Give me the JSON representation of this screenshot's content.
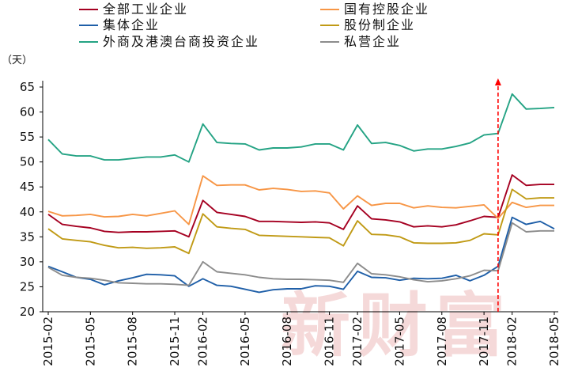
{
  "chart_data": {
    "type": "line",
    "title": "",
    "xlabel": "",
    "ylabel": "",
    "y_unit": "（天）",
    "ylim": [
      20,
      65
    ],
    "yticks": [
      20,
      25,
      30,
      35,
      40,
      45,
      50,
      55,
      60,
      65
    ],
    "xtick_labels": [
      "2015-02",
      "2015-05",
      "2015-08",
      "2015-11",
      "2016-02",
      "2016-05",
      "2016-08",
      "2016-11",
      "2017-02",
      "2017-05",
      "2017-08",
      "2017-11",
      "2018-02",
      "2018-05"
    ],
    "x": [
      "2015-02",
      "2015-03",
      "2015-04",
      "2015-05",
      "2015-06",
      "2015-07",
      "2015-08",
      "2015-09",
      "2015-10",
      "2015-11",
      "2015-12",
      "2016-02",
      "2016-03",
      "2016-04",
      "2016-05",
      "2016-06",
      "2016-07",
      "2016-08",
      "2016-09",
      "2016-10",
      "2016-11",
      "2016-12",
      "2017-02",
      "2017-03",
      "2017-04",
      "2017-05",
      "2017-06",
      "2017-07",
      "2017-08",
      "2017-09",
      "2017-10",
      "2017-11",
      "2017-12",
      "2018-02",
      "2018-03",
      "2018-04",
      "2018-05"
    ],
    "grid": false,
    "legend_position": "top",
    "watermark": "新财富",
    "reference_line": {
      "x": "2017-12",
      "style": "dashed-arrow",
      "color": "#ff0000"
    },
    "series": [
      {
        "name": "全部工业企业",
        "color": "#a50021",
        "values": [
          39.5,
          37.5,
          37.1,
          36.8,
          36.1,
          35.9,
          36.0,
          36.0,
          36.1,
          36.2,
          35.0,
          42.3,
          39.9,
          39.5,
          39.1,
          38.1,
          38.1,
          38.0,
          37.9,
          38.0,
          37.8,
          36.5,
          41.2,
          38.6,
          38.4,
          38.0,
          37.0,
          37.2,
          37.0,
          37.4,
          38.2,
          39.1,
          38.9,
          47.4,
          45.3,
          45.5,
          45.5
        ]
      },
      {
        "name": "国有控股企业",
        "color": "#f79646",
        "values": [
          40.1,
          39.2,
          39.3,
          39.5,
          39.0,
          39.1,
          39.5,
          39.2,
          39.7,
          40.2,
          37.5,
          47.2,
          45.3,
          45.4,
          45.4,
          44.4,
          44.7,
          44.5,
          44.1,
          44.2,
          43.8,
          40.6,
          43.2,
          41.3,
          41.7,
          41.7,
          40.8,
          41.2,
          40.9,
          40.8,
          41.1,
          41.4,
          38.7,
          41.9,
          40.9,
          41.3,
          41.3
        ]
      },
      {
        "name": "集体企业",
        "color": "#1f5fa8",
        "values": [
          29.1,
          28.0,
          26.9,
          26.5,
          25.4,
          26.2,
          26.8,
          27.5,
          27.4,
          27.2,
          25.1,
          26.6,
          25.3,
          25.1,
          24.5,
          23.9,
          24.4,
          24.6,
          24.6,
          25.2,
          25.1,
          24.5,
          28.1,
          26.9,
          26.8,
          26.3,
          26.7,
          26.6,
          26.7,
          27.3,
          26.2,
          27.3,
          29.1,
          38.9,
          37.5,
          38.1,
          36.6
        ]
      },
      {
        "name": "股份制企业",
        "color": "#c09a15",
        "values": [
          36.6,
          34.6,
          34.3,
          34.0,
          33.3,
          32.8,
          32.9,
          32.7,
          32.8,
          33.0,
          31.7,
          39.6,
          37.0,
          36.7,
          36.5,
          35.3,
          35.2,
          35.1,
          35.0,
          34.9,
          34.8,
          33.2,
          38.2,
          35.5,
          35.4,
          35.0,
          33.8,
          33.7,
          33.7,
          33.8,
          34.3,
          35.6,
          35.4,
          44.5,
          42.6,
          42.8,
          42.8
        ]
      },
      {
        "name": "外商及港澳台商投资企业",
        "color": "#24a384",
        "values": [
          54.5,
          51.6,
          51.2,
          51.2,
          50.4,
          50.4,
          50.7,
          51.0,
          51.0,
          51.4,
          50.0,
          57.6,
          53.9,
          53.7,
          53.6,
          52.4,
          52.8,
          52.8,
          53.0,
          53.6,
          53.6,
          52.4,
          57.4,
          53.7,
          53.9,
          53.3,
          52.2,
          52.6,
          52.6,
          53.1,
          53.8,
          55.4,
          55.7,
          63.6,
          60.6,
          60.7,
          60.9
        ]
      },
      {
        "name": "私营企业",
        "color": "#8c8c8c",
        "values": [
          28.9,
          27.3,
          26.9,
          26.7,
          26.3,
          25.8,
          25.7,
          25.6,
          25.6,
          25.5,
          25.3,
          30.0,
          28.0,
          27.7,
          27.4,
          26.9,
          26.6,
          26.5,
          26.5,
          26.4,
          26.3,
          25.9,
          29.7,
          27.6,
          27.4,
          27.0,
          26.4,
          26.0,
          26.2,
          26.6,
          27.2,
          28.3,
          28.2,
          37.8,
          36.0,
          36.2,
          36.2
        ]
      }
    ]
  }
}
